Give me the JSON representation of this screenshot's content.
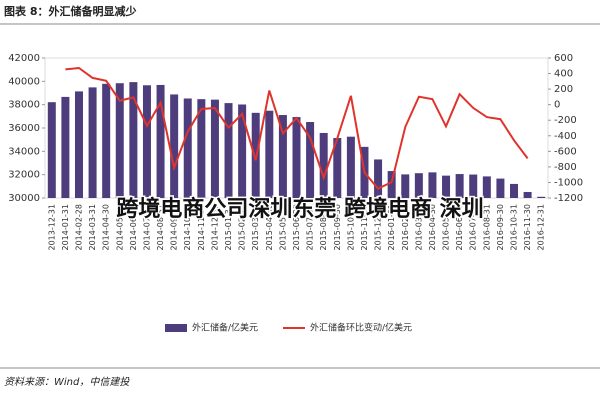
{
  "header": {
    "title": "图表 8：外汇储备明显减少"
  },
  "chart_data": {
    "type": "bar_line",
    "categories": [
      "2013-12-31",
      "2014-01-31",
      "2014-02-28",
      "2014-03-31",
      "2014-04-30",
      "2014-05-31",
      "2014-06-30",
      "2014-07-31",
      "2014-08-31",
      "2014-09-30",
      "2014-10-31",
      "2014-11-30",
      "2014-12-31",
      "2015-01-31",
      "2015-02-28",
      "2015-03-31",
      "2015-04-30",
      "2015-05-31",
      "2015-06-30",
      "2015-07-31",
      "2015-08-31",
      "2015-09-30",
      "2015-10-31",
      "2015-11-30",
      "2015-12-31",
      "2016-01-31",
      "2016-02-29",
      "2016-03-31",
      "2016-04-30",
      "2016-05-31",
      "2016-06-30",
      "2016-07-31",
      "2016-08-31",
      "2016-09-30",
      "2016-10-31",
      "2016-11-30",
      "2016-12-31"
    ],
    "series": [
      {
        "name": "外汇储备/亿美元",
        "color": "#4e3d7c",
        "values": [
          38213,
          38666,
          39137,
          39481,
          39788,
          39839,
          39932,
          39662,
          39688,
          38877,
          38529,
          38473,
          38430,
          38134,
          38015,
          37300,
          37481,
          37111,
          36938,
          36513,
          35574,
          35141,
          35255,
          34383,
          33304,
          32309,
          32023,
          32126,
          32197,
          31917,
          32052,
          32011,
          31851,
          31664,
          31206,
          30516,
          30105
        ]
      },
      {
        "name": "外汇储备环比变动/亿美元",
        "color": "#e0332c",
        "axis": "y2",
        "values": [
          null,
          453,
          471,
          344,
          307,
          51,
          93,
          -270,
          26,
          -811,
          -348,
          -56,
          -43,
          -296,
          -119,
          -715,
          181,
          -370,
          -173,
          -425,
          -939,
          -433,
          114,
          -872,
          -1079,
          -995,
          -286,
          103,
          71,
          -280,
          135,
          -41,
          -160,
          -187,
          -458,
          -691,
          null
        ]
      }
    ],
    "ylim": [
      30000,
      42000
    ],
    "yticks": [
      30000,
      32000,
      34000,
      36000,
      38000,
      40000,
      42000
    ],
    "y2lim": [
      -1200,
      600
    ],
    "y2ticks": [
      -1200,
      -1000,
      -800,
      -600,
      -400,
      -200,
      0,
      200,
      400,
      600
    ],
    "annotations": [
      "跨境电商公司深圳东莞 跨境电商 深圳"
    ]
  },
  "footer": {
    "source": "资料来源：Wind，中信建投"
  }
}
